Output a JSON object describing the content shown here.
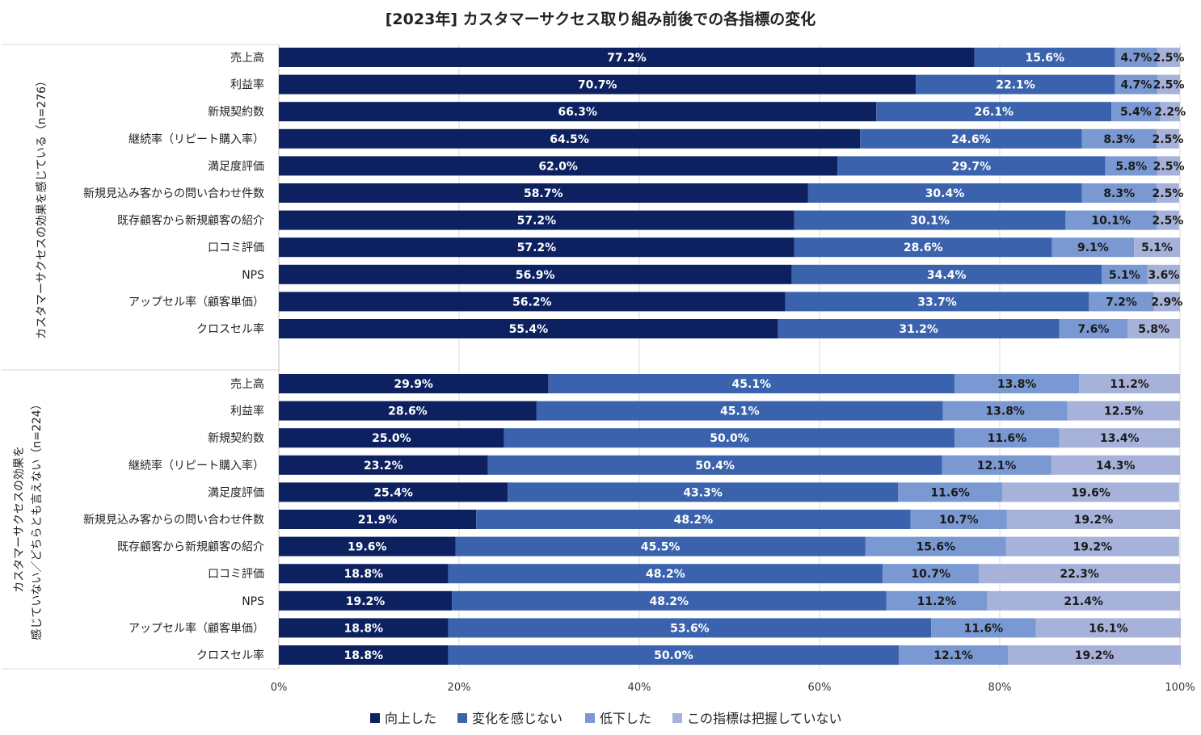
{
  "chart_data": {
    "type": "bar",
    "orientation": "horizontal-stacked-100",
    "title": "[2023年] カスタマーサクセス取り組み前後での各指標の変化",
    "categories": [
      "売上高",
      "利益率",
      "新規契約数",
      "継続率（リピート購入率）",
      "満足度評価",
      "新規見込み客からの問い合わせ件数",
      "既存顧客から新規顧客の紹介",
      "口コミ評価",
      "NPS",
      "アップセル率（顧客単価）",
      "クロスセル率"
    ],
    "legend": [
      "向上した",
      "変化を感じない",
      "低下した",
      "この指標は把握していない"
    ],
    "colors": [
      "#0d2160",
      "#3b63ad",
      "#7a99d3",
      "#a6b2d9"
    ],
    "label_colors": [
      "#ffffff",
      "#ffffff",
      "#1a1a1a",
      "#1a1a1a"
    ],
    "xlim": [
      0,
      100
    ],
    "x_ticks": [
      "0%",
      "20%",
      "40%",
      "60%",
      "80%",
      "100%"
    ],
    "groups": [
      {
        "label": "カスタマーサクセスの効果を感じている（n=276）",
        "label_lines": [
          "カスタマーサクセスの効果を感じている（n=276）"
        ],
        "values": [
          [
            77.2,
            15.6,
            4.7,
            2.5
          ],
          [
            70.7,
            22.1,
            4.7,
            2.5
          ],
          [
            66.3,
            26.1,
            5.4,
            2.2
          ],
          [
            64.5,
            24.6,
            8.3,
            2.5
          ],
          [
            62.0,
            29.7,
            5.8,
            2.5
          ],
          [
            58.7,
            30.4,
            8.3,
            2.5
          ],
          [
            57.2,
            30.1,
            10.1,
            2.5
          ],
          [
            57.2,
            28.6,
            9.1,
            5.1
          ],
          [
            56.9,
            34.4,
            5.1,
            3.6
          ],
          [
            56.2,
            33.7,
            7.2,
            2.9
          ],
          [
            55.4,
            31.2,
            7.6,
            5.8
          ]
        ],
        "value_labels": [
          [
            "77.2%",
            "15.6%",
            "4.7%",
            "2.5%"
          ],
          [
            "70.7%",
            "22.1%",
            "4.7%",
            "2.5%"
          ],
          [
            "66.3%",
            "26.1%",
            "5.4%",
            "2.2%"
          ],
          [
            "64.5%",
            "24.6%",
            "8.3%",
            "2.5%"
          ],
          [
            "62.0%",
            "29.7%",
            "5.8%",
            "2.5%"
          ],
          [
            "58.7%",
            "30.4%",
            "8.3%",
            "2.5%"
          ],
          [
            "57.2%",
            "30.1%",
            "10.1%",
            "2.5%"
          ],
          [
            "57.2%",
            "28.6%",
            "9.1%",
            "5.1%"
          ],
          [
            "56.9%",
            "34.4%",
            "5.1%",
            "3.6%"
          ],
          [
            "56.2%",
            "33.7%",
            "7.2%",
            "2.9%"
          ],
          [
            "55.4%",
            "31.2%",
            "7.6%",
            "5.8%"
          ]
        ]
      },
      {
        "label": "カスタマーサクセスの効果を感じていない／どちらとも言えない（n=224）",
        "label_lines": [
          "カスタマーサクセスの効果を",
          "感じていない／どちらとも言えない（n=224）"
        ],
        "values": [
          [
            29.9,
            45.1,
            13.8,
            11.2
          ],
          [
            28.6,
            45.1,
            13.8,
            12.5
          ],
          [
            25.0,
            50.0,
            11.6,
            13.4
          ],
          [
            23.2,
            50.4,
            12.1,
            14.3
          ],
          [
            25.4,
            43.3,
            11.6,
            19.6
          ],
          [
            21.9,
            48.2,
            10.7,
            19.2
          ],
          [
            19.6,
            45.5,
            15.6,
            19.2
          ],
          [
            18.8,
            48.2,
            10.7,
            22.3
          ],
          [
            19.2,
            48.2,
            11.2,
            21.4
          ],
          [
            18.8,
            53.6,
            11.6,
            16.1
          ],
          [
            18.8,
            50.0,
            12.1,
            19.2
          ]
        ],
        "value_labels": [
          [
            "29.9%",
            "45.1%",
            "13.8%",
            "11.2%"
          ],
          [
            "28.6%",
            "45.1%",
            "13.8%",
            "12.5%"
          ],
          [
            "25.0%",
            "50.0%",
            "11.6%",
            "13.4%"
          ],
          [
            "23.2%",
            "50.4%",
            "12.1%",
            "14.3%"
          ],
          [
            "25.4%",
            "43.3%",
            "11.6%",
            "19.6%"
          ],
          [
            "21.9%",
            "48.2%",
            "10.7%",
            "19.2%"
          ],
          [
            "19.6%",
            "45.5%",
            "15.6%",
            "19.2%"
          ],
          [
            "18.8%",
            "48.2%",
            "10.7%",
            "22.3%"
          ],
          [
            "19.2%",
            "48.2%",
            "11.2%",
            "21.4%"
          ],
          [
            "18.8%",
            "53.6%",
            "11.6%",
            "16.1%"
          ],
          [
            "18.8%",
            "50.0%",
            "12.1%",
            "19.2%"
          ]
        ]
      }
    ]
  }
}
